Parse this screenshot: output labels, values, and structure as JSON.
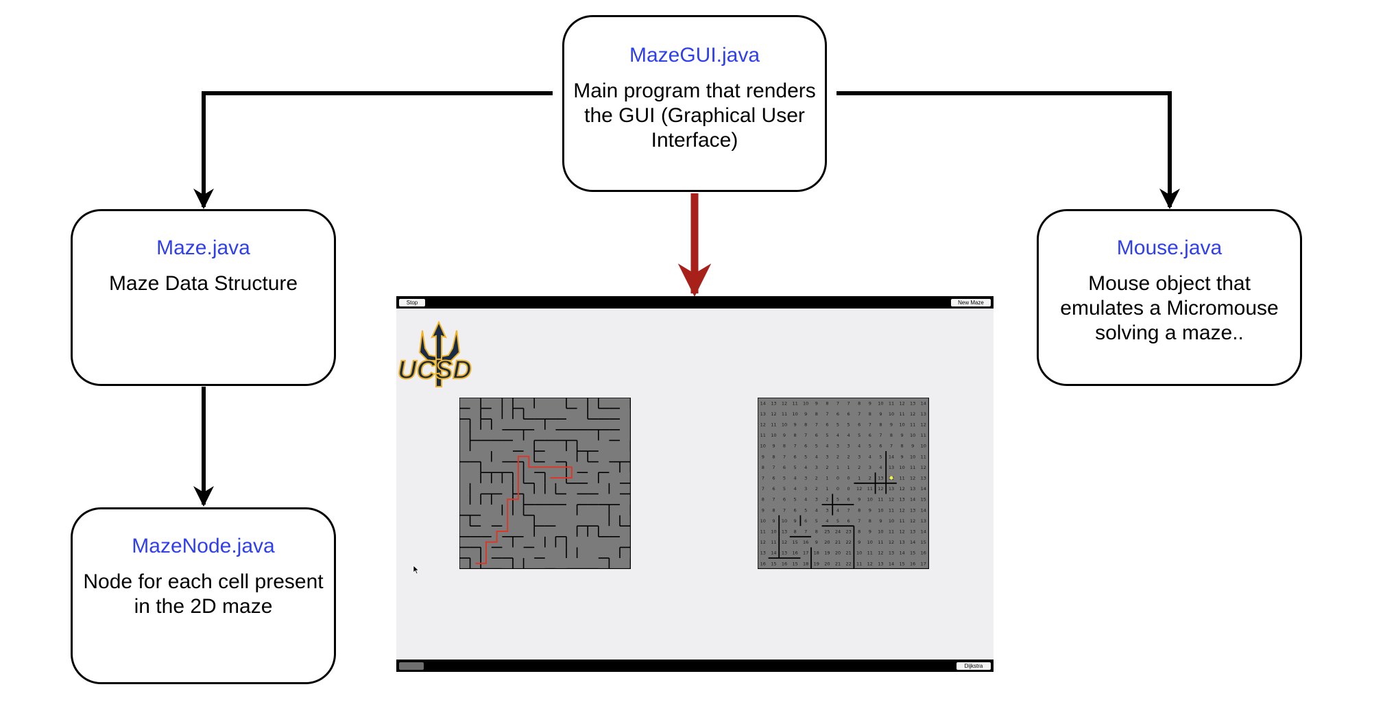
{
  "nodes": {
    "gui": {
      "title": "MazeGUI.java",
      "desc": "Main program that renders the GUI (Graphical User Interface)"
    },
    "maze": {
      "title": "Maze.java",
      "desc": "Maze Data Structure"
    },
    "mouse": {
      "title": "Mouse.java",
      "desc": "Mouse object that emulates a Micromouse solving a maze.."
    },
    "node": {
      "title": "MazeNode.java",
      "desc": "Node for each cell present in the 2D maze"
    }
  },
  "app": {
    "stop_label": "Stop",
    "new_maze_label": "New Maze",
    "dijkstra_label": "Dijkstra",
    "logo_text": "UCSD"
  },
  "distance_grid": [
    [
      14,
      13,
      12,
      11,
      10,
      9,
      8,
      7,
      7,
      8,
      9,
      10,
      11,
      12,
      13,
      14
    ],
    [
      13,
      12,
      11,
      10,
      9,
      8,
      7,
      6,
      6,
      7,
      8,
      9,
      10,
      11,
      12,
      13
    ],
    [
      12,
      11,
      10,
      9,
      8,
      7,
      6,
      5,
      5,
      6,
      7,
      8,
      9,
      10,
      11,
      12
    ],
    [
      11,
      10,
      9,
      8,
      7,
      6,
      5,
      4,
      4,
      5,
      6,
      7,
      8,
      9,
      10,
      11
    ],
    [
      10,
      9,
      8,
      7,
      6,
      5,
      4,
      3,
      3,
      4,
      5,
      6,
      7,
      8,
      9,
      10
    ],
    [
      9,
      8,
      7,
      6,
      5,
      4,
      3,
      2,
      2,
      3,
      4,
      5,
      14,
      9,
      10,
      11
    ],
    [
      8,
      7,
      6,
      5,
      4,
      3,
      2,
      1,
      1,
      2,
      3,
      4,
      13,
      10,
      11,
      12
    ],
    [
      7,
      6,
      5,
      4,
      3,
      2,
      1,
      0,
      0,
      1,
      2,
      13,
      12,
      11,
      12,
      13
    ],
    [
      7,
      6,
      5,
      4,
      3,
      2,
      1,
      0,
      0,
      12,
      11,
      12,
      13,
      12,
      13,
      14
    ],
    [
      8,
      7,
      6,
      5,
      4,
      3,
      2,
      5,
      6,
      9,
      10,
      11,
      12,
      13,
      14,
      15
    ],
    [
      9,
      8,
      7,
      6,
      5,
      4,
      3,
      4,
      7,
      8,
      9,
      10,
      11,
      12,
      13,
      14
    ],
    [
      10,
      9,
      10,
      9,
      6,
      5,
      4,
      5,
      6,
      7,
      8,
      9,
      10,
      11,
      12,
      13
    ],
    [
      11,
      10,
      13,
      8,
      7,
      8,
      25,
      24,
      23,
      8,
      9,
      10,
      11,
      12,
      13,
      14
    ],
    [
      12,
      11,
      12,
      15,
      16,
      9,
      20,
      21,
      22,
      9,
      10,
      11,
      12,
      13,
      14,
      15
    ],
    [
      13,
      14,
      13,
      16,
      17,
      18,
      19,
      20,
      21,
      10,
      11,
      12,
      13,
      14,
      15,
      16
    ],
    [
      16,
      15,
      16,
      15,
      18,
      19,
      20,
      21,
      22,
      11,
      12,
      13,
      14,
      15,
      16,
      17
    ]
  ],
  "colors": {
    "title_blue": "#2f3ff0",
    "primary_arrow": "#a8201a",
    "maze_gray": "#7b7b7b",
    "path_red": "#d9382a",
    "mouse_yellow": "#f2f24a",
    "logo_navy": "#182b49",
    "logo_gold": "#f0b323"
  },
  "icons": {
    "cursor": "arrow-cursor-icon",
    "logo": "trident-logo-icon"
  }
}
